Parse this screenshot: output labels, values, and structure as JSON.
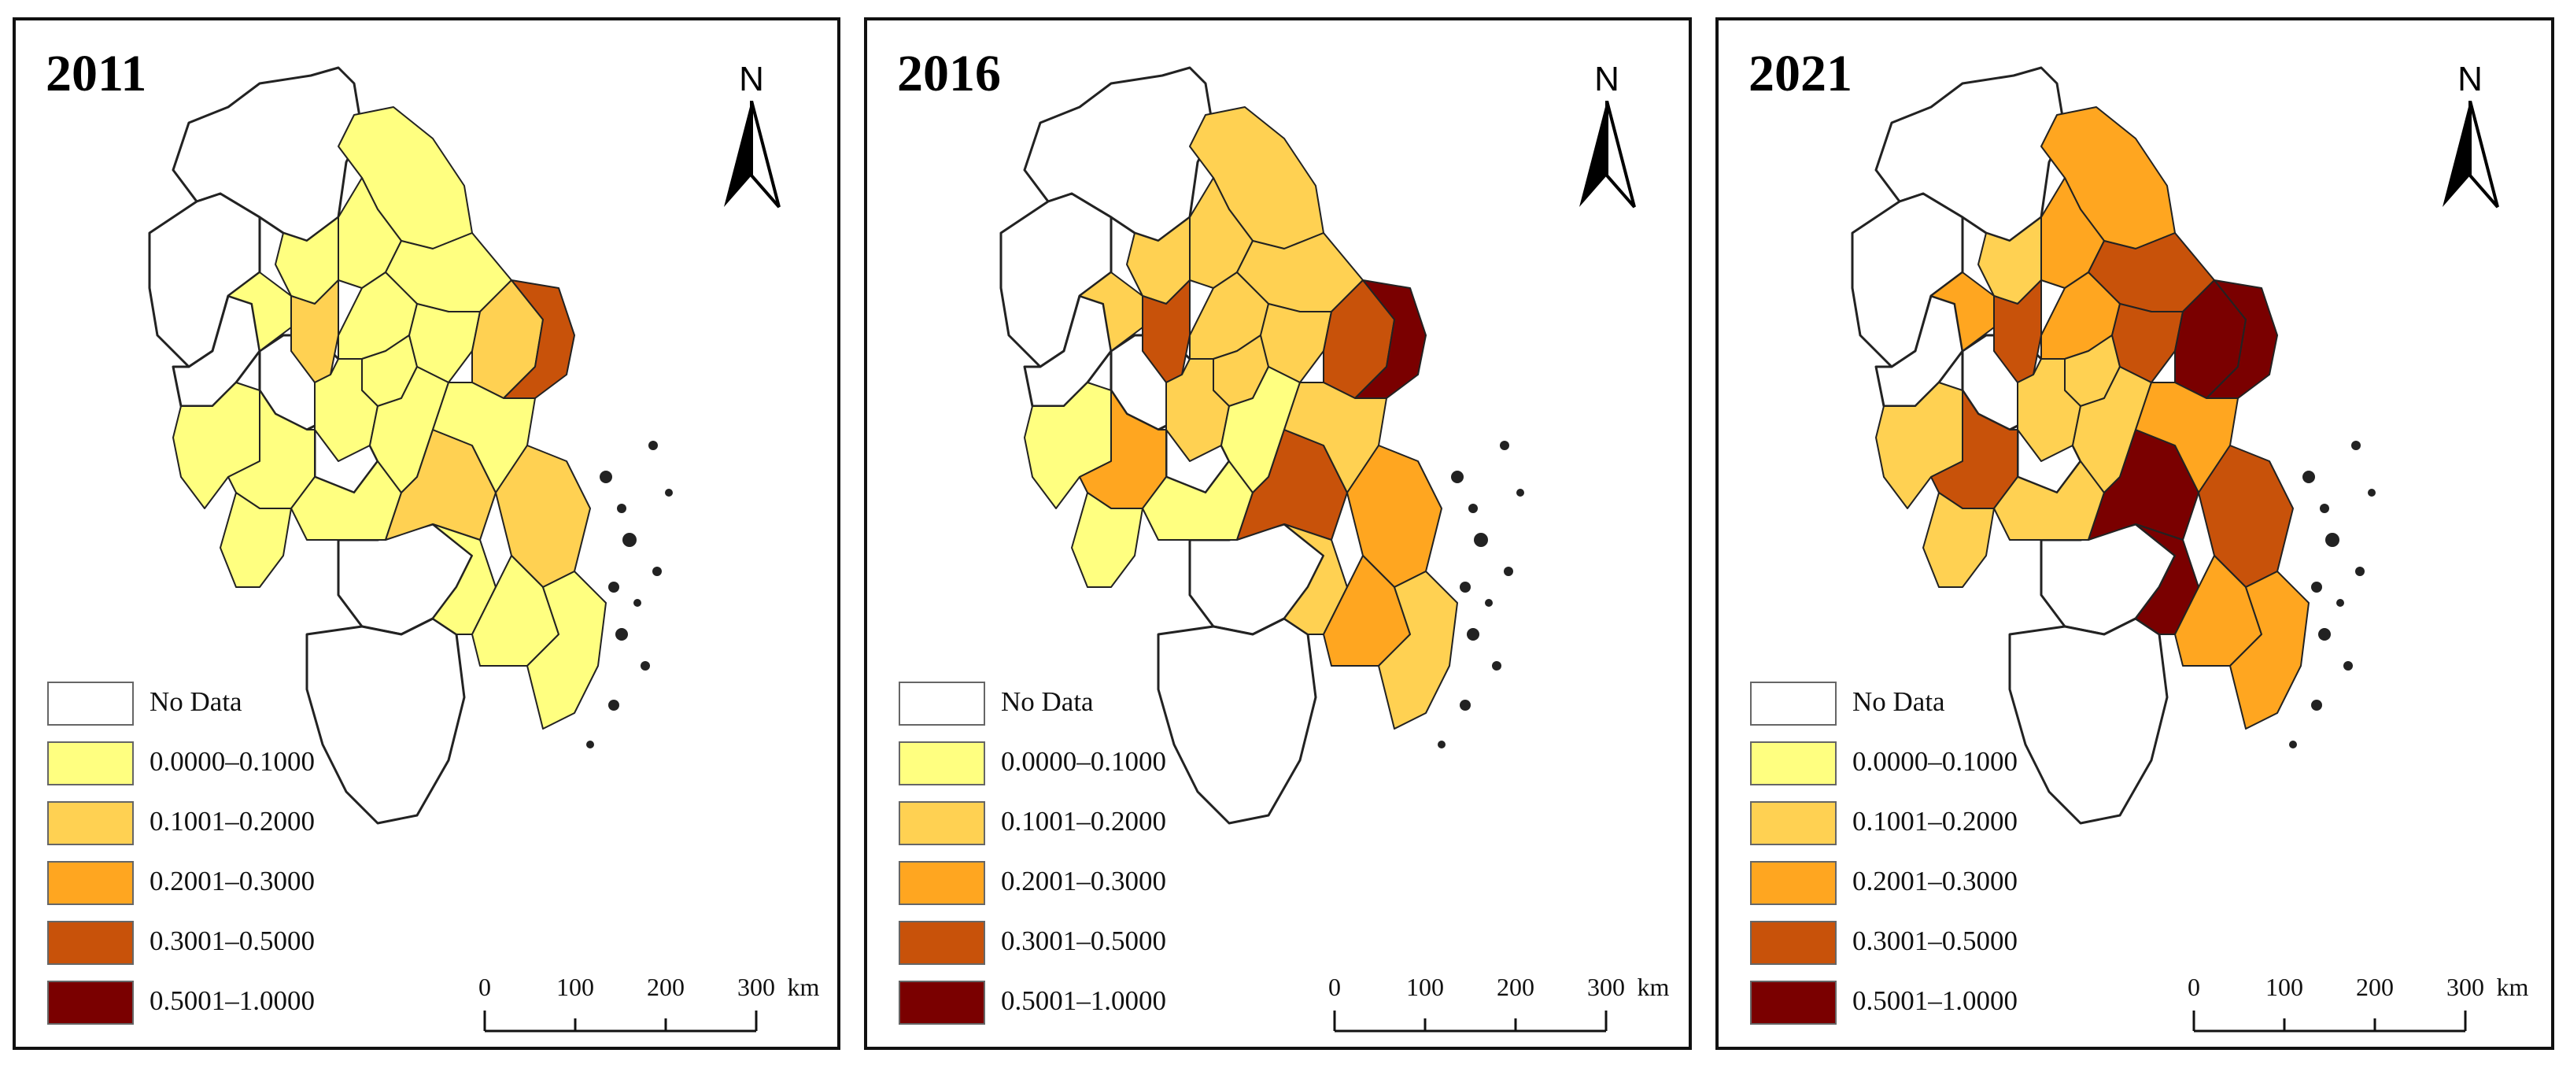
{
  "legend": {
    "items": [
      {
        "label": "No Data",
        "color": "#ffffff"
      },
      {
        "label": "0.0000–0.1000",
        "color": "#ffff80"
      },
      {
        "label": "0.1001–0.2000",
        "color": "#ffd152"
      },
      {
        "label": "0.2001–0.3000",
        "color": "#ffa620"
      },
      {
        "label": "0.3001–0.5000",
        "color": "#c8520a"
      },
      {
        "label": "0.5001–1.0000",
        "color": "#7a0000"
      }
    ]
  },
  "north": {
    "letter": "N"
  },
  "scale": {
    "ticks": [
      "0",
      "100",
      "200",
      "300"
    ],
    "unit": "km"
  },
  "panels": [
    {
      "year": "2011",
      "regions": {
        "nw1": 0,
        "nw2": 0,
        "ws1": 0,
        "ws2": 0,
        "sw": 0,
        "s1": 0,
        "s2": 0,
        "n1": 1,
        "n2": 1,
        "n3": 1,
        "n4": 1,
        "n5": 1,
        "c1": 2,
        "c2": 1,
        "c3": 1,
        "c4": 1,
        "c5": 2,
        "sh": 4,
        "a1": 1,
        "a2": 1,
        "a3": 1,
        "a4": 1,
        "a5": 1,
        "a6": 1,
        "z1": 2,
        "z2": 1,
        "z3": 1,
        "z4": 2,
        "z5": 1,
        "z6": 1
      }
    },
    {
      "year": "2016",
      "regions": {
        "nw1": 0,
        "nw2": 0,
        "ws1": 0,
        "ws2": 0,
        "sw": 0,
        "s1": 0,
        "s2": 0,
        "n1": 2,
        "n2": 2,
        "n3": 2,
        "n4": 2,
        "n5": 2,
        "c1": 4,
        "c2": 2,
        "c3": 2,
        "c4": 2,
        "c5": 4,
        "sh": 5,
        "a1": 1,
        "a2": 3,
        "a3": 2,
        "a4": 1,
        "a5": 1,
        "a6": 1,
        "z1": 4,
        "z2": 2,
        "z3": 2,
        "z4": 3,
        "z5": 3,
        "z6": 2
      }
    },
    {
      "year": "2021",
      "regions": {
        "nw1": 0,
        "nw2": 0,
        "ws1": 0,
        "ws2": 0,
        "sw": 0,
        "s1": 0,
        "s2": 0,
        "n1": 3,
        "n2": 3,
        "n3": 2,
        "n4": 4,
        "n5": 3,
        "c1": 4,
        "c2": 3,
        "c3": 2,
        "c4": 4,
        "c5": 5,
        "sh": 5,
        "a1": 2,
        "a2": 4,
        "a3": 2,
        "a4": 2,
        "a5": 2,
        "a6": 2,
        "z1": 5,
        "z2": 5,
        "z3": 3,
        "z4": 4,
        "z5": 3,
        "z6": 3
      }
    }
  ]
}
